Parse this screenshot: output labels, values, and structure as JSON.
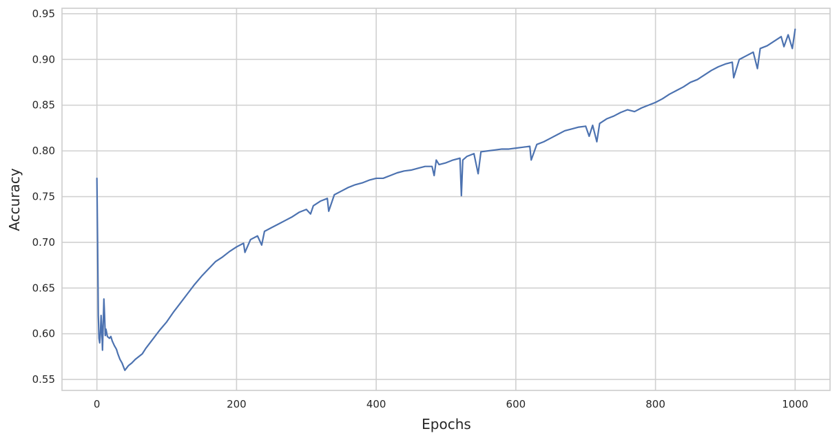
{
  "chart_data": {
    "type": "line",
    "title": "",
    "xlabel": "Epochs",
    "ylabel": "Accuracy",
    "xlim": [
      -50,
      1050
    ],
    "ylim": [
      0.538,
      0.956
    ],
    "xticks": [
      0,
      200,
      400,
      600,
      800,
      1000
    ],
    "xtick_labels": [
      "0",
      "200",
      "400",
      "600",
      "800",
      "1000"
    ],
    "yticks": [
      0.55,
      0.6,
      0.65,
      0.7,
      0.75,
      0.8,
      0.85,
      0.9,
      0.95
    ],
    "ytick_labels": [
      "0.55",
      "0.60",
      "0.65",
      "0.70",
      "0.75",
      "0.80",
      "0.85",
      "0.90",
      "0.95"
    ],
    "grid": true,
    "colors": {
      "line": "#4c72b0",
      "grid": "#d0d0d0",
      "spine": "#cccccc"
    },
    "series": [
      {
        "name": "",
        "x": [
          0,
          1,
          2,
          3,
          4,
          5,
          6,
          7,
          8,
          9,
          10,
          11,
          12,
          13,
          15,
          18,
          20,
          22,
          25,
          28,
          30,
          33,
          36,
          40,
          45,
          50,
          55,
          60,
          65,
          70,
          80,
          90,
          100,
          110,
          120,
          130,
          140,
          150,
          160,
          170,
          180,
          190,
          200,
          210,
          212,
          220,
          230,
          236,
          240,
          250,
          260,
          270,
          280,
          290,
          300,
          306,
          310,
          320,
          330,
          332,
          340,
          350,
          360,
          370,
          380,
          390,
          400,
          410,
          420,
          430,
          440,
          450,
          460,
          470,
          480,
          483,
          486,
          490,
          500,
          510,
          520,
          522,
          524,
          530,
          540,
          546,
          550,
          560,
          570,
          580,
          590,
          600,
          610,
          620,
          622,
          630,
          640,
          650,
          660,
          670,
          680,
          690,
          700,
          705,
          710,
          716,
          720,
          730,
          740,
          750,
          760,
          770,
          780,
          790,
          800,
          810,
          820,
          830,
          840,
          850,
          860,
          870,
          880,
          890,
          900,
          910,
          912,
          920,
          930,
          940,
          946,
          950,
          960,
          970,
          980,
          984,
          990,
          996,
          1000
        ],
        "y": [
          0.77,
          0.7,
          0.62,
          0.595,
          0.59,
          0.6,
          0.62,
          0.605,
          0.582,
          0.61,
          0.638,
          0.62,
          0.598,
          0.605,
          0.597,
          0.595,
          0.597,
          0.592,
          0.587,
          0.583,
          0.578,
          0.572,
          0.568,
          0.56,
          0.565,
          0.568,
          0.572,
          0.575,
          0.578,
          0.584,
          0.594,
          0.604,
          0.613,
          0.624,
          0.634,
          0.644,
          0.654,
          0.663,
          0.671,
          0.679,
          0.684,
          0.69,
          0.695,
          0.699,
          0.689,
          0.703,
          0.707,
          0.697,
          0.712,
          0.716,
          0.72,
          0.724,
          0.728,
          0.733,
          0.736,
          0.731,
          0.74,
          0.745,
          0.748,
          0.734,
          0.752,
          0.756,
          0.76,
          0.763,
          0.765,
          0.768,
          0.77,
          0.77,
          0.773,
          0.776,
          0.778,
          0.779,
          0.781,
          0.783,
          0.783,
          0.773,
          0.79,
          0.785,
          0.787,
          0.79,
          0.792,
          0.751,
          0.79,
          0.794,
          0.797,
          0.775,
          0.799,
          0.8,
          0.801,
          0.802,
          0.802,
          0.803,
          0.804,
          0.805,
          0.79,
          0.807,
          0.81,
          0.814,
          0.818,
          0.822,
          0.824,
          0.826,
          0.827,
          0.816,
          0.828,
          0.81,
          0.83,
          0.835,
          0.838,
          0.842,
          0.845,
          0.843,
          0.847,
          0.85,
          0.853,
          0.857,
          0.862,
          0.866,
          0.87,
          0.875,
          0.878,
          0.883,
          0.888,
          0.892,
          0.895,
          0.897,
          0.88,
          0.9,
          0.904,
          0.908,
          0.89,
          0.912,
          0.915,
          0.92,
          0.925,
          0.914,
          0.927,
          0.912,
          0.933
        ]
      }
    ]
  }
}
